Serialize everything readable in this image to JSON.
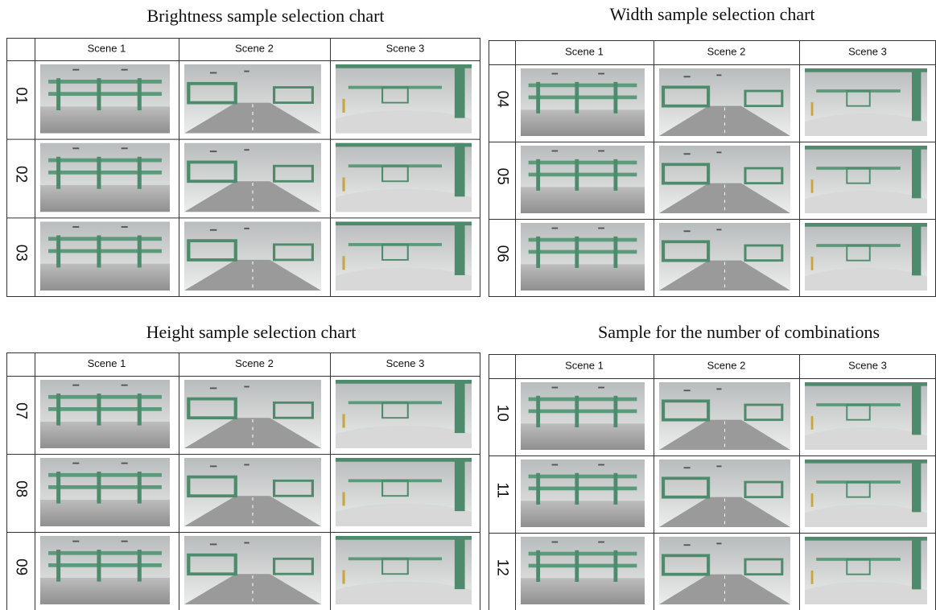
{
  "panels": [
    {
      "title": "Brightness sample selection chart",
      "columns": [
        "Scene 1",
        "Scene 2",
        "Scene 3"
      ],
      "rows": [
        "01",
        "02",
        "03"
      ]
    },
    {
      "title": "Width sample selection chart",
      "columns": [
        "Scene 1",
        "Scene 2",
        "Scene 3"
      ],
      "rows": [
        "04",
        "05",
        "06"
      ]
    },
    {
      "title": "Height sample selection chart",
      "columns": [
        "Scene 1",
        "Scene 2",
        "Scene 3"
      ],
      "rows": [
        "07",
        "08",
        "09"
      ]
    },
    {
      "title": "Sample for the number of combinations",
      "columns": [
        "Scene 1",
        "Scene 2",
        "Scene 3"
      ],
      "rows": [
        "10",
        "11",
        "12"
      ]
    }
  ]
}
